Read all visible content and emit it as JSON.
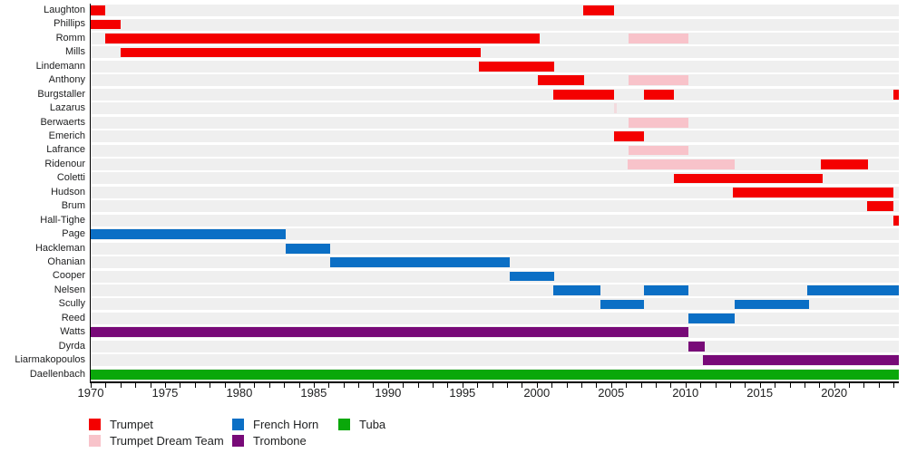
{
  "chart_data": {
    "type": "gantt-timeline",
    "description": "Brass quintet membership timeline by instrument",
    "x_axis": {
      "min": 1970,
      "max": 2024.35,
      "major_tick_labels": [
        "1970",
        "1975",
        "1980",
        "1985",
        "1990",
        "1995",
        "2000",
        "2005",
        "2010",
        "2015",
        "2020"
      ],
      "major_tick_years": [
        1970,
        1975,
        1980,
        1985,
        1990,
        1995,
        2000,
        2005,
        2010,
        2015,
        2020
      ],
      "minor_tick_interval": 1
    },
    "legend": [
      {
        "key": "trumpet",
        "label": "Trumpet",
        "color": "#f40000",
        "column": 0,
        "row": 0
      },
      {
        "key": "trumpet_dream_team",
        "label": "Trumpet Dream Team",
        "color": "#f8c3ca",
        "column": 0,
        "row": 1
      },
      {
        "key": "french_horn",
        "label": "French Horn",
        "color": "#0b6fc5",
        "column": 1,
        "row": 0
      },
      {
        "key": "trombone",
        "label": "Trombone",
        "color": "#780a78",
        "column": 1,
        "row": 1
      },
      {
        "key": "tuba",
        "label": "Tuba",
        "color": "#0aa80a",
        "column": 2,
        "row": 0
      }
    ],
    "members": [
      {
        "name": "Laughton",
        "periods": [
          {
            "start": 1970.0,
            "end": 1971.0,
            "role": "trumpet"
          },
          {
            "start": 2003.1,
            "end": 2005.2,
            "role": "trumpet"
          }
        ]
      },
      {
        "name": "Phillips",
        "periods": [
          {
            "start": 1970.0,
            "end": 1972.0,
            "role": "trumpet"
          }
        ]
      },
      {
        "name": "Romm",
        "periods": [
          {
            "start": 1971.0,
            "end": 2000.2,
            "role": "trumpet"
          },
          {
            "start": 2006.2,
            "end": 2010.2,
            "role": "trumpet_dream_team"
          }
        ]
      },
      {
        "name": "Mills",
        "periods": [
          {
            "start": 1972.0,
            "end": 1996.2,
            "role": "trumpet"
          }
        ]
      },
      {
        "name": "Lindemann",
        "periods": [
          {
            "start": 1996.1,
            "end": 2001.2,
            "role": "trumpet"
          }
        ]
      },
      {
        "name": "Anthony",
        "periods": [
          {
            "start": 2000.1,
            "end": 2003.2,
            "role": "trumpet"
          },
          {
            "start": 2006.2,
            "end": 2010.2,
            "role": "trumpet_dream_team"
          }
        ]
      },
      {
        "name": "Burgstaller",
        "periods": [
          {
            "start": 2001.1,
            "end": 2005.2,
            "role": "trumpet"
          },
          {
            "start": 2007.2,
            "end": 2009.2,
            "role": "trumpet"
          },
          {
            "start": 2024.0,
            "end": 2024.35,
            "role": "trumpet"
          }
        ]
      },
      {
        "name": "Lazarus",
        "periods": [
          {
            "start": 2005.2,
            "end": 2005.35,
            "role": "trumpet_dream_team",
            "faint": true
          }
        ]
      },
      {
        "name": "Berwaerts",
        "periods": [
          {
            "start": 2006.2,
            "end": 2010.2,
            "role": "trumpet_dream_team"
          }
        ]
      },
      {
        "name": "Emerich",
        "periods": [
          {
            "start": 2005.2,
            "end": 2007.2,
            "role": "trumpet"
          }
        ]
      },
      {
        "name": "Lafrance",
        "periods": [
          {
            "start": 2006.2,
            "end": 2010.2,
            "role": "trumpet_dream_team"
          }
        ]
      },
      {
        "name": "Ridenour",
        "periods": [
          {
            "start": 2006.1,
            "end": 2013.3,
            "role": "trumpet_dream_team"
          },
          {
            "start": 2019.1,
            "end": 2022.3,
            "role": "trumpet"
          }
        ]
      },
      {
        "name": "Coletti",
        "periods": [
          {
            "start": 2009.2,
            "end": 2019.2,
            "role": "trumpet"
          }
        ]
      },
      {
        "name": "Hudson",
        "periods": [
          {
            "start": 2013.2,
            "end": 2024.0,
            "role": "trumpet"
          }
        ]
      },
      {
        "name": "Brum",
        "periods": [
          {
            "start": 2022.2,
            "end": 2024.0,
            "role": "trumpet"
          }
        ]
      },
      {
        "name": "Hall-Tighe",
        "periods": [
          {
            "start": 2024.0,
            "end": 2024.35,
            "role": "trumpet"
          }
        ]
      },
      {
        "name": "Page",
        "periods": [
          {
            "start": 1970.0,
            "end": 1983.1,
            "role": "french_horn"
          }
        ]
      },
      {
        "name": "Hackleman",
        "periods": [
          {
            "start": 1983.1,
            "end": 1986.1,
            "role": "french_horn"
          }
        ]
      },
      {
        "name": "Ohanian",
        "periods": [
          {
            "start": 1986.1,
            "end": 1998.2,
            "role": "french_horn"
          }
        ]
      },
      {
        "name": "Cooper",
        "periods": [
          {
            "start": 1998.2,
            "end": 2001.2,
            "role": "french_horn"
          }
        ]
      },
      {
        "name": "Nelsen",
        "periods": [
          {
            "start": 2001.1,
            "end": 2004.3,
            "role": "french_horn"
          },
          {
            "start": 2007.2,
            "end": 2010.2,
            "role": "french_horn"
          },
          {
            "start": 2018.2,
            "end": 2024.35,
            "role": "french_horn"
          }
        ]
      },
      {
        "name": "Scully",
        "periods": [
          {
            "start": 2004.3,
            "end": 2007.2,
            "role": "french_horn"
          },
          {
            "start": 2013.3,
            "end": 2018.3,
            "role": "french_horn"
          }
        ]
      },
      {
        "name": "Reed",
        "periods": [
          {
            "start": 2010.2,
            "end": 2013.3,
            "role": "french_horn"
          }
        ]
      },
      {
        "name": "Watts",
        "periods": [
          {
            "start": 1970.0,
            "end": 2010.2,
            "role": "trombone"
          }
        ]
      },
      {
        "name": "Dyrda",
        "periods": [
          {
            "start": 2010.2,
            "end": 2011.3,
            "role": "trombone"
          }
        ]
      },
      {
        "name": "Liarmakopoulos",
        "periods": [
          {
            "start": 2011.2,
            "end": 2024.35,
            "role": "trombone"
          }
        ]
      },
      {
        "name": "Daellenbach",
        "periods": [
          {
            "start": 1970.0,
            "end": 2024.35,
            "role": "tuba"
          }
        ]
      }
    ],
    "layout_hints": {
      "row_band_color": "#efefef",
      "axis_color": "#000000",
      "background": "#ffffff",
      "grid": false,
      "legend_position": "bottom"
    }
  }
}
